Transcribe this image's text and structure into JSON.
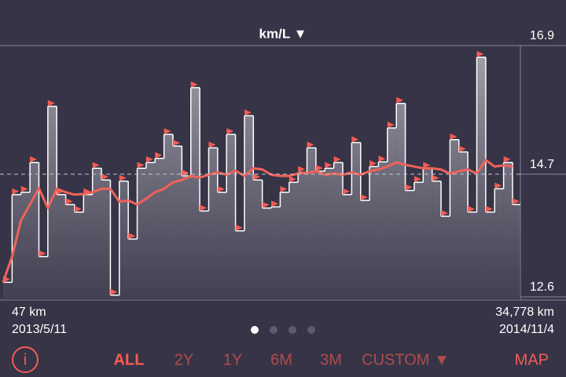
{
  "chart_data": {
    "type": "step",
    "title": "km/L ▼",
    "series": [
      {
        "color": "#ffffff",
        "marker_color": "#f25c54",
        "values": [
          12.85,
          14.35,
          14.39,
          14.9,
          13.29,
          15.86,
          14.35,
          14.18,
          14.05,
          14.35,
          14.8,
          14.6,
          12.63,
          14.58,
          13.59,
          14.8,
          14.9,
          14.97,
          15.38,
          15.18,
          14.67,
          16.18,
          14.07,
          15.15,
          14.39,
          15.38,
          13.73,
          15.7,
          14.6,
          14.12,
          14.14,
          14.39,
          14.56,
          14.73,
          15.15,
          14.75,
          14.8,
          14.9,
          14.35,
          15.24,
          14.25,
          14.83,
          14.91,
          15.49,
          15.91,
          14.42,
          14.56,
          14.8,
          14.58,
          13.98,
          15.29,
          15.08,
          14.05,
          16.7,
          14.05,
          14.45,
          14.9,
          14.18
        ]
      },
      {
        "type": "line",
        "color": "#f0625a",
        "values": [
          12.85,
          13.29,
          13.91,
          14.18,
          14.46,
          14.12,
          14.45,
          14.39,
          14.35,
          14.36,
          14.39,
          14.45,
          14.45,
          14.23,
          14.25,
          14.18,
          14.28,
          14.39,
          14.45,
          14.56,
          14.6,
          14.67,
          14.64,
          14.69,
          14.73,
          14.69,
          14.76,
          14.67,
          14.8,
          14.78,
          14.69,
          14.67,
          14.67,
          14.71,
          14.72,
          14.75,
          14.69,
          14.71,
          14.69,
          14.73,
          14.69,
          14.75,
          14.78,
          14.83,
          14.9,
          14.86,
          14.83,
          14.8,
          14.8,
          14.78,
          14.71,
          14.75,
          14.78,
          14.71,
          14.94,
          14.83,
          14.85,
          14.83
        ]
      }
    ],
    "ylim": [
      12.6,
      16.9
    ],
    "yticks": [
      12.6,
      14.7,
      16.9
    ],
    "reference_line": 14.7
  },
  "range": {
    "start": {
      "distance": "47 km",
      "date": "2013/5/11"
    },
    "end": {
      "distance": "34,778 km",
      "date": "2014/11/4"
    }
  },
  "pager": {
    "count": 4,
    "active": 0
  },
  "toolbar": {
    "info": "i",
    "periods": [
      "ALL",
      "2Y",
      "1Y",
      "6M",
      "3M",
      "CUSTOM ▼"
    ],
    "selected": 0,
    "map": "MAP"
  }
}
